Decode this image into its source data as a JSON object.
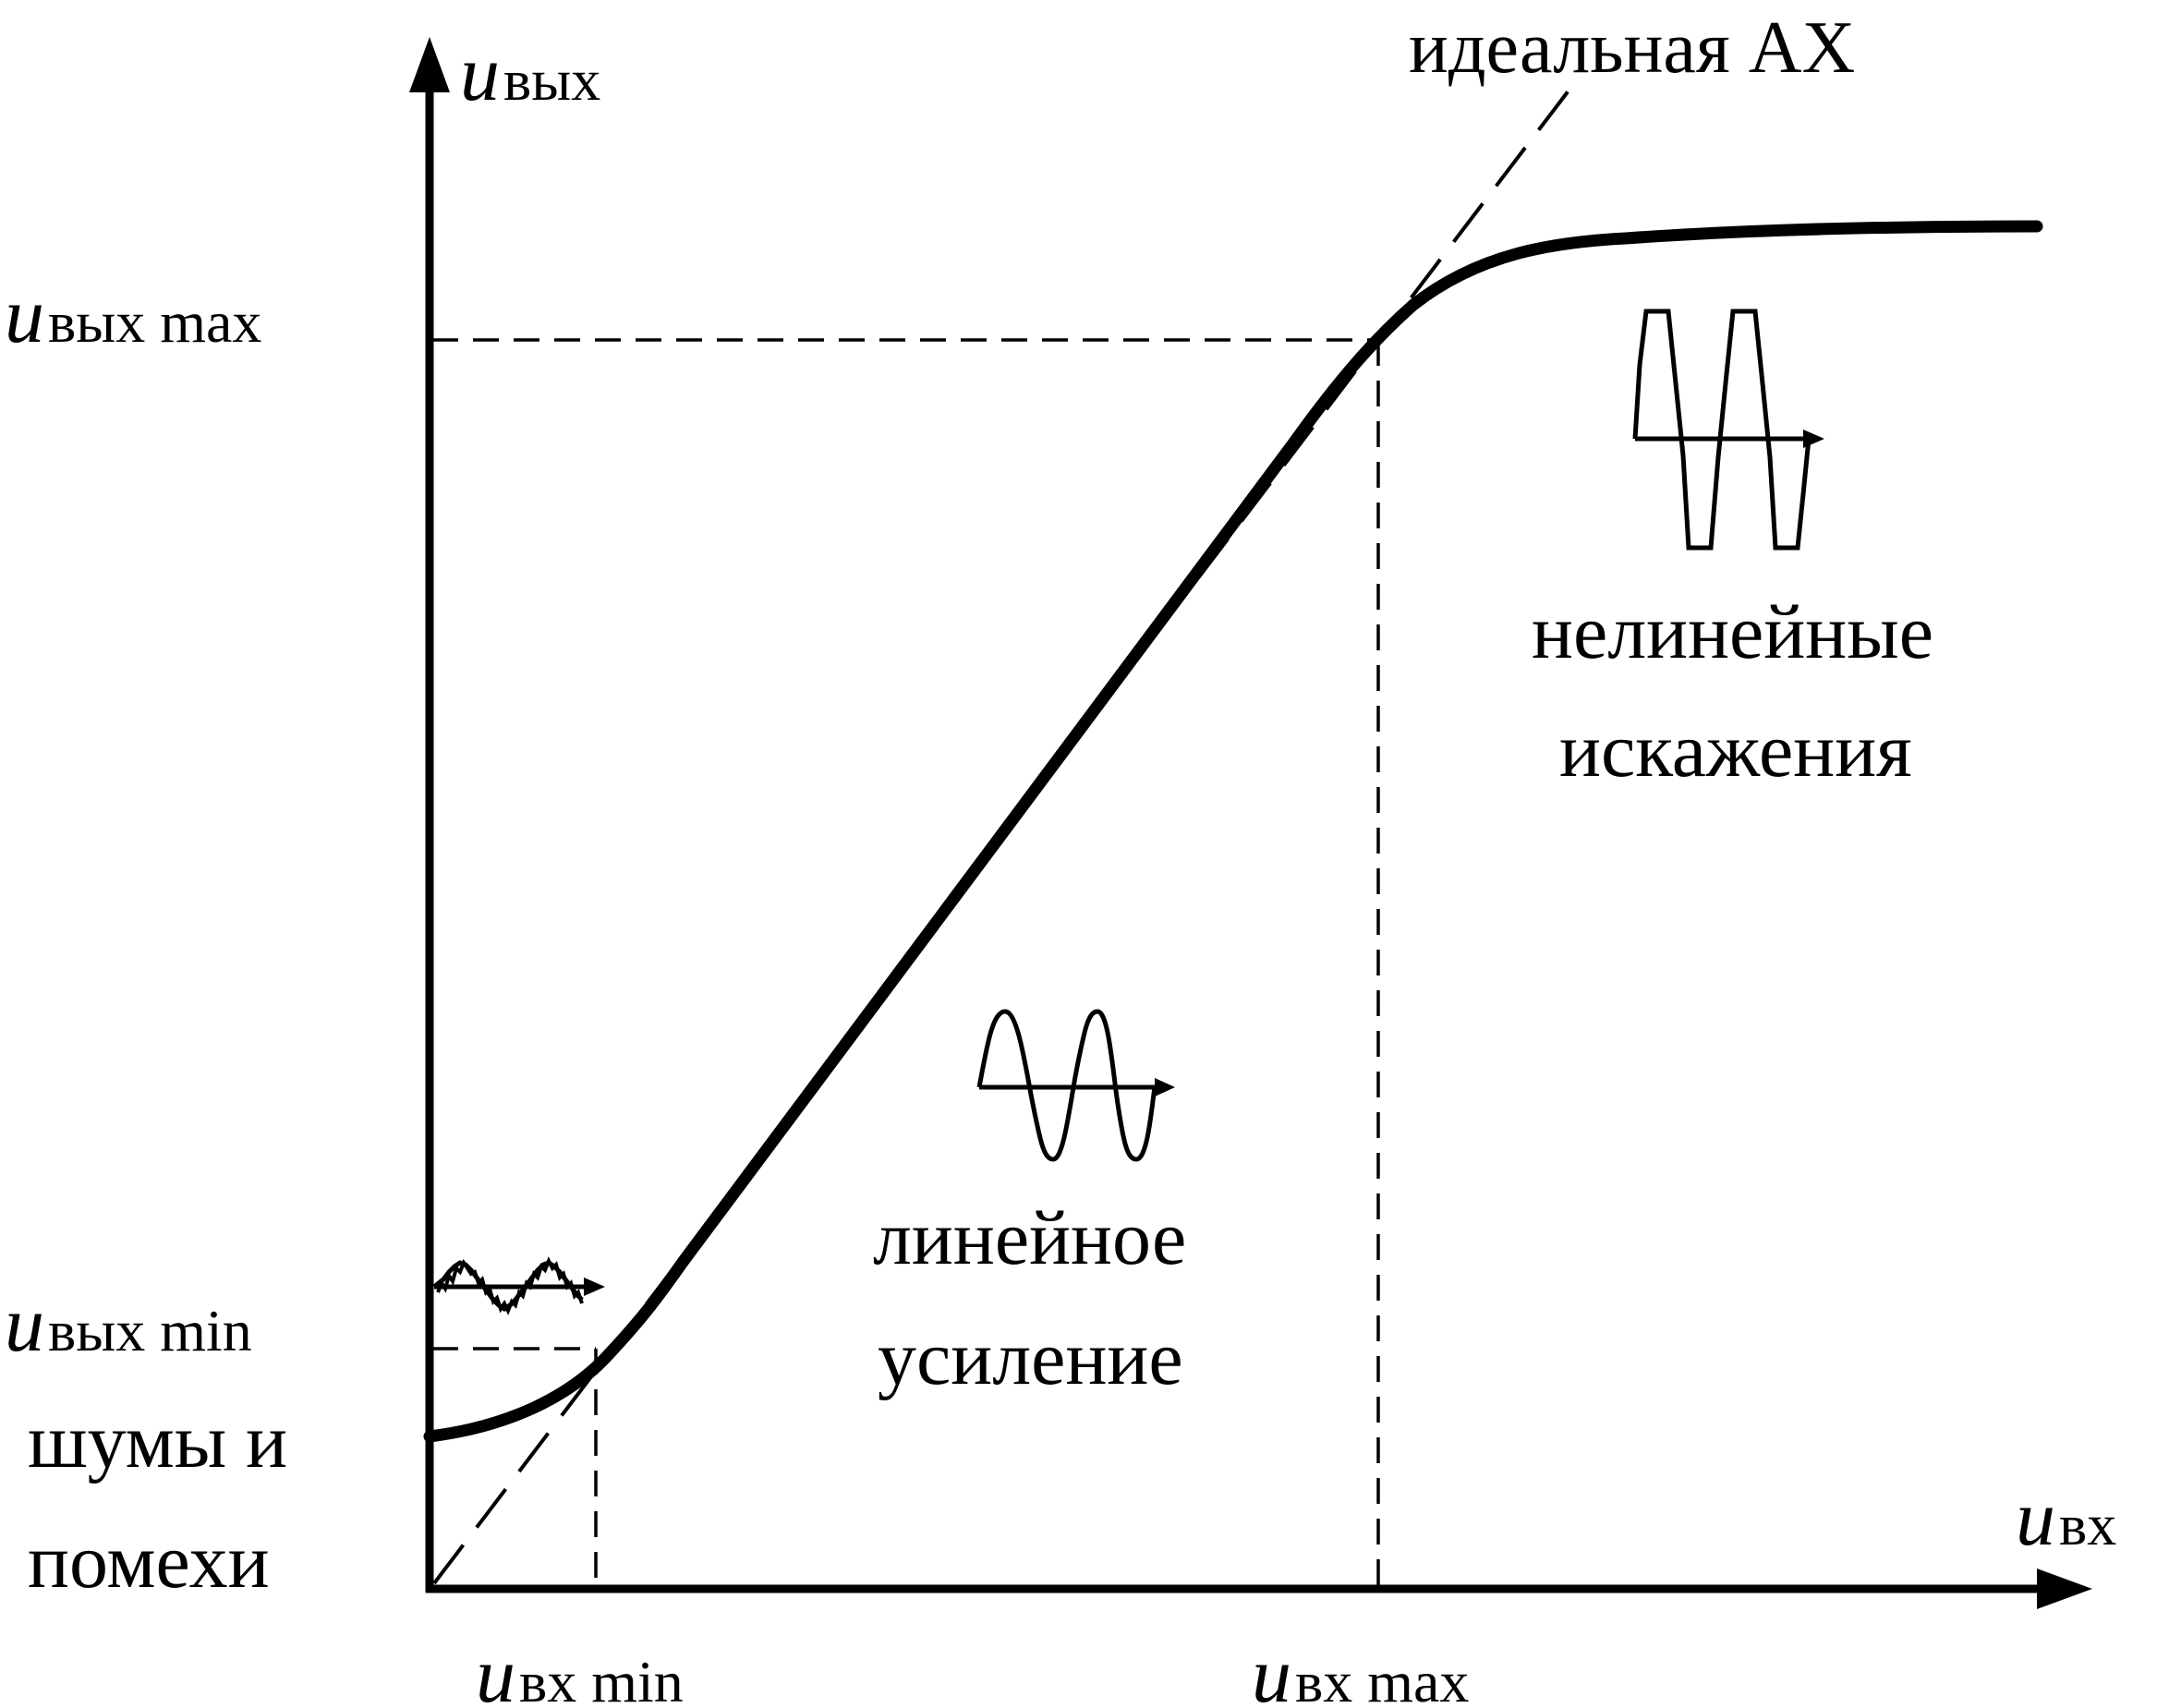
{
  "colors": {
    "ink": "#000000",
    "background": "#ffffff"
  },
  "axes": {
    "y_label": {
      "symbol": "u",
      "subscript": "вых"
    },
    "x_label": {
      "symbol": "u",
      "subscript": "вх"
    }
  },
  "y_ticks": {
    "max": {
      "symbol": "u",
      "subscript": "вых max"
    },
    "min": {
      "symbol": "u",
      "subscript": "вых min"
    }
  },
  "x_ticks": {
    "min": {
      "symbol": "u",
      "subscript": "вх min"
    },
    "max": {
      "symbol": "u",
      "subscript": "вх max"
    }
  },
  "annotations": {
    "ideal_curve": "идеальная АХ",
    "noise_line1": "шумы и",
    "noise_line2": "помехи",
    "linear_line1": "линейное",
    "linear_line2": "усиление",
    "nonlinear_line1": "нелинейные",
    "nonlinear_line2": "искажения"
  },
  "icons": {
    "noise": "noisy-sine-wave-icon",
    "linear": "sine-wave-icon",
    "nonlinear": "clipped-wave-icon"
  }
}
